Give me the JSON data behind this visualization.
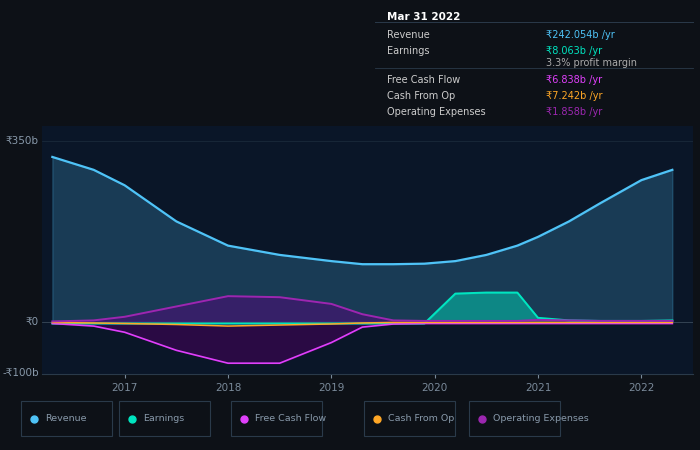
{
  "bg_color": "#0d1117",
  "plot_bg_color": "#0a1628",
  "ylim": [
    -100,
    380
  ],
  "years": [
    2016.3,
    2016.7,
    2017,
    2017.5,
    2018,
    2018.5,
    2019,
    2019.3,
    2019.6,
    2019.9,
    2020.2,
    2020.5,
    2020.8,
    2021,
    2021.3,
    2021.6,
    2022,
    2022.3
  ],
  "revenue": [
    320,
    295,
    265,
    195,
    148,
    130,
    118,
    112,
    112,
    113,
    118,
    130,
    148,
    165,
    195,
    230,
    275,
    295
  ],
  "earnings": [
    -3,
    -3,
    -3,
    -3,
    -3,
    -3,
    -3,
    -3,
    -3,
    -3,
    55,
    57,
    57,
    8,
    3,
    2,
    2,
    3
  ],
  "free_cash_flow": [
    -3,
    -8,
    -20,
    -55,
    -80,
    -80,
    -40,
    -10,
    -4,
    -3,
    -3,
    -3,
    -3,
    -3,
    -3,
    -3,
    -3,
    -3
  ],
  "cash_from_op": [
    -1,
    -2,
    -3,
    -5,
    -8,
    -6,
    -4,
    -2,
    -1,
    -1,
    -1,
    -1,
    -1,
    -1,
    -1,
    -1,
    -1,
    -1
  ],
  "operating_expenses": [
    1,
    3,
    10,
    30,
    50,
    48,
    35,
    15,
    3,
    2,
    2,
    2,
    2,
    4,
    3,
    2,
    2,
    2
  ],
  "ytick_350": "₹350b",
  "ytick_0": "₹0",
  "ytick_neg100": "-₹100b",
  "legend_items": [
    {
      "label": "Revenue",
      "color": "#4fc3f7"
    },
    {
      "label": "Earnings",
      "color": "#00e5c0"
    },
    {
      "label": "Free Cash Flow",
      "color": "#e040fb"
    },
    {
      "label": "Cash From Op",
      "color": "#ffa726"
    },
    {
      "label": "Operating Expenses",
      "color": "#9c27b0"
    }
  ],
  "info_title": "Mar 31 2022",
  "info_rows": [
    {
      "label": "Revenue",
      "value": "₹242.054b /yr",
      "color": "#4fc3f7",
      "sep_before": false
    },
    {
      "label": "Earnings",
      "value": "₹8.063b /yr",
      "color": "#00e5c0",
      "sep_before": false
    },
    {
      "label": "",
      "value": "3.3% profit margin",
      "color": "#aaaaaa",
      "sep_before": false
    },
    {
      "label": "Free Cash Flow",
      "value": "₹6.838b /yr",
      "color": "#e040fb",
      "sep_before": true
    },
    {
      "label": "Cash From Op",
      "value": "₹7.242b /yr",
      "color": "#ffa726",
      "sep_before": false
    },
    {
      "label": "Operating Expenses",
      "value": "₹1.858b /yr",
      "color": "#9c27b0",
      "sep_before": false
    }
  ]
}
